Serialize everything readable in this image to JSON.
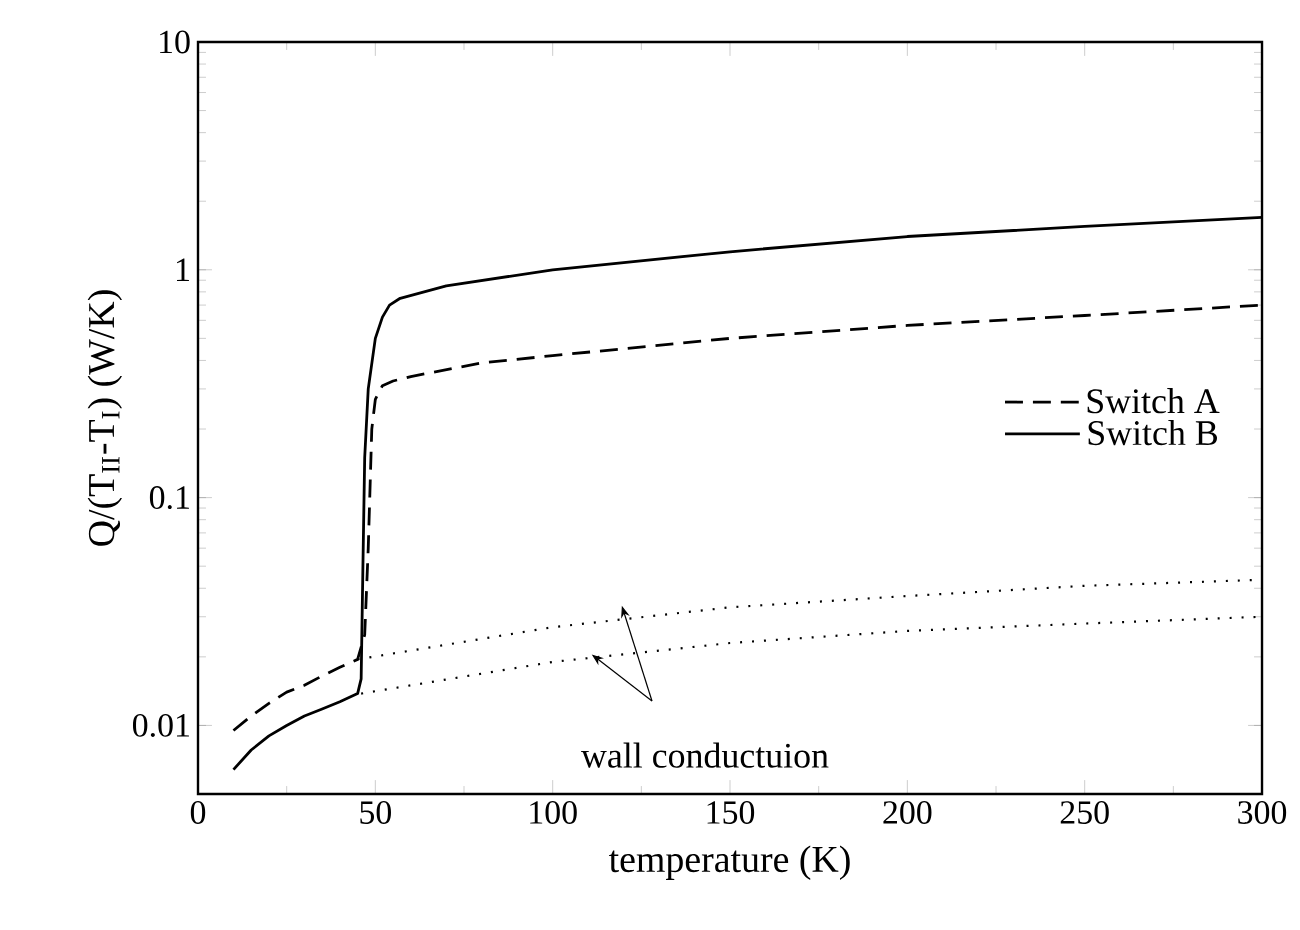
{
  "chart_data": {
    "type": "line",
    "xlabel": "temperature (K)",
    "ylabel": "Q/(T$_{II}$-T$_{I}$) (W/K)",
    "log": "y",
    "xlim": [
      0,
      300
    ],
    "ylim": [
      0.005,
      10
    ],
    "xticks": [
      0,
      50,
      100,
      150,
      200,
      250,
      300
    ],
    "yticks": [
      0.01,
      0.1,
      1,
      10
    ],
    "grid": false,
    "legend": "right",
    "marker": "none",
    "annotations": [
      {
        "text": "wall conductuion",
        "x": 111,
        "y": 0.0205
      }
    ],
    "series": [
      {
        "name": "Switch A",
        "color": "#000000",
        "line_style": "dashed",
        "x": [
          10,
          15,
          20,
          25,
          30,
          35,
          40,
          45,
          47,
          48,
          49,
          50,
          52,
          55,
          60,
          80,
          100,
          150,
          200,
          250,
          300
        ],
        "values": [
          0.0095,
          0.011,
          0.0125,
          0.014,
          0.015,
          0.0165,
          0.018,
          0.0195,
          0.025,
          0.06,
          0.2,
          0.27,
          0.31,
          0.325,
          0.34,
          0.39,
          0.42,
          0.5,
          0.57,
          0.63,
          0.7
        ]
      },
      {
        "name": "Switch B",
        "color": "#000000",
        "line_style": "solid",
        "x": [
          10,
          15,
          20,
          25,
          30,
          35,
          40,
          45,
          46,
          46.5,
          47,
          48,
          50,
          52,
          54,
          57,
          70,
          100,
          150,
          200,
          250,
          300
        ],
        "values": [
          0.0064,
          0.0078,
          0.009,
          0.01,
          0.011,
          0.0118,
          0.0127,
          0.0138,
          0.016,
          0.05,
          0.15,
          0.3,
          0.5,
          0.62,
          0.7,
          0.75,
          0.85,
          1.0,
          1.2,
          1.4,
          1.55,
          1.7
        ]
      },
      {
        "color": "#000000",
        "line_style": "dotted",
        "x": [
          45,
          100,
          150,
          200,
          250,
          300
        ],
        "values": [
          0.0195,
          0.027,
          0.033,
          0.037,
          0.041,
          0.0436
        ]
      },
      {
        "color": "#000000",
        "line_style": "dotted",
        "x": [
          46,
          100,
          150,
          200,
          250,
          300
        ],
        "values": [
          0.0138,
          0.019,
          0.023,
          0.026,
          0.028,
          0.03
        ]
      }
    ]
  }
}
